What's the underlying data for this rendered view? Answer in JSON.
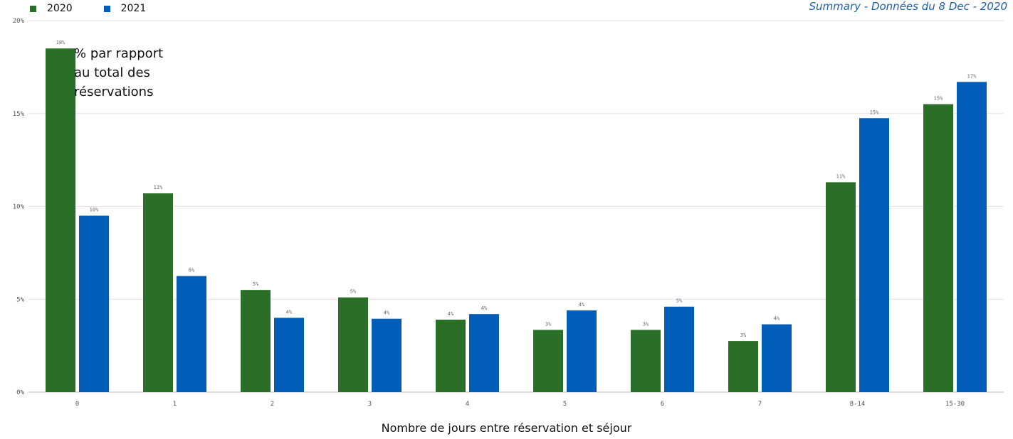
{
  "header": {
    "summary_title": "Summary - Données du 8 Dec - 2020"
  },
  "legend": {
    "items": [
      {
        "label": "2020",
        "color": "#2a6e27"
      },
      {
        "label": "2021",
        "color": "#015db8"
      }
    ]
  },
  "annotation": {
    "lines": [
      "% par rapport",
      "au total des",
      "réservations"
    ]
  },
  "chart_data": {
    "type": "bar",
    "categories": [
      "0",
      "1",
      "2",
      "3",
      "4",
      "5",
      "6",
      "7",
      "8-14",
      "15-30"
    ],
    "series": [
      {
        "name": "2020",
        "color": "#2a6e27",
        "values": [
          18.5,
          10.7,
          5.5,
          5.1,
          3.9,
          3.35,
          3.35,
          2.75,
          11.3,
          15.5
        ],
        "labels": [
          "18%",
          "11%",
          "5%",
          "5%",
          "4%",
          "3%",
          "3%",
          "3%",
          "11%",
          "15%"
        ]
      },
      {
        "name": "2021",
        "color": "#015db8",
        "values": [
          9.5,
          6.25,
          4.0,
          3.95,
          4.2,
          4.4,
          4.6,
          3.65,
          14.75,
          16.7
        ],
        "labels": [
          "10%",
          "6%",
          "4%",
          "4%",
          "4%",
          "4%",
          "5%",
          "4%",
          "15%",
          "17%"
        ]
      }
    ],
    "yticks": [
      0,
      5,
      10,
      15,
      20
    ],
    "ytick_labels": [
      "0%",
      "5%",
      "10%",
      "15%",
      "20%"
    ],
    "ylim": [
      0,
      20
    ],
    "xlabel": "Nombre de jours entre réservation et séjour",
    "grid": true,
    "legend_position": "top-left"
  }
}
